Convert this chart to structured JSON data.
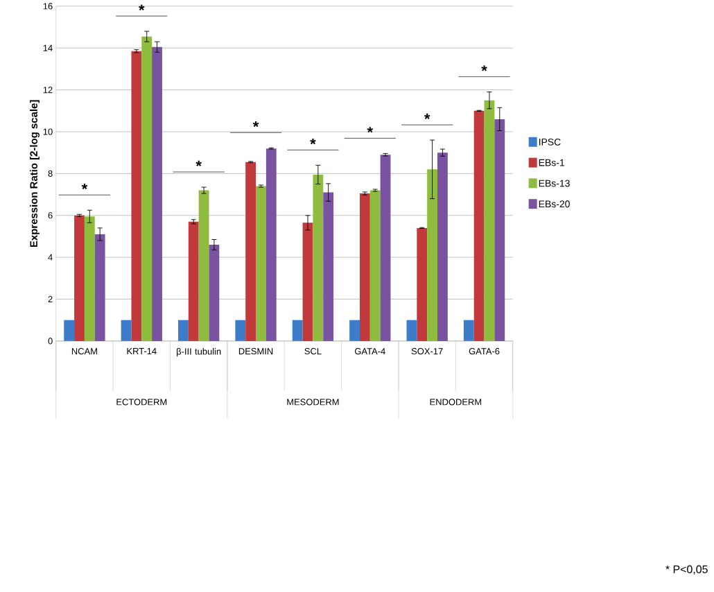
{
  "chart_data": {
    "type": "bar",
    "ylabel": "Expression Ratio [2-log scale]",
    "categories": [
      "NCAM",
      "KRT-14",
      "β-III tubulin",
      "DESMIN",
      "SCL",
      "GATA-4",
      "SOX-17",
      "GATA-6"
    ],
    "series": [
      {
        "name": "IPSC",
        "color": "#3d7cc9",
        "values": [
          1,
          1,
          1,
          1,
          1,
          1,
          1,
          1
        ]
      },
      {
        "name": "EBs-1",
        "color": "#c0393b",
        "values": [
          6.0,
          13.85,
          5.7,
          8.55,
          5.65,
          7.05,
          5.4,
          11.0
        ],
        "errors": [
          0.05,
          0.07,
          0.1,
          0.03,
          0.35,
          0.07,
          0.02,
          0.02
        ]
      },
      {
        "name": "EBs-13",
        "color": "#8fbc3f",
        "values": [
          5.95,
          14.55,
          7.2,
          7.4,
          7.95,
          7.2,
          8.2,
          11.5
        ],
        "errors": [
          0.3,
          0.25,
          0.15,
          0.05,
          0.45,
          0.05,
          1.4,
          0.4
        ]
      },
      {
        "name": "EBs-20",
        "color": "#7953a0",
        "values": [
          5.1,
          14.05,
          4.6,
          9.2,
          7.1,
          8.9,
          9.0,
          10.6
        ],
        "errors": [
          0.3,
          0.25,
          0.25,
          0.03,
          0.42,
          0.06,
          0.17,
          0.55
        ]
      }
    ],
    "ylim": [
      0,
      16
    ],
    "yticks": [
      0,
      2,
      4,
      6,
      8,
      10,
      12,
      14,
      16
    ],
    "grid": "y",
    "legend": "right",
    "annotations": [
      "*",
      "*",
      "*",
      "*",
      "*",
      "*",
      "*",
      "*",
      "ECTODERM",
      "MESODERM",
      "ENDODERM",
      "* P<0,05"
    ]
  }
}
